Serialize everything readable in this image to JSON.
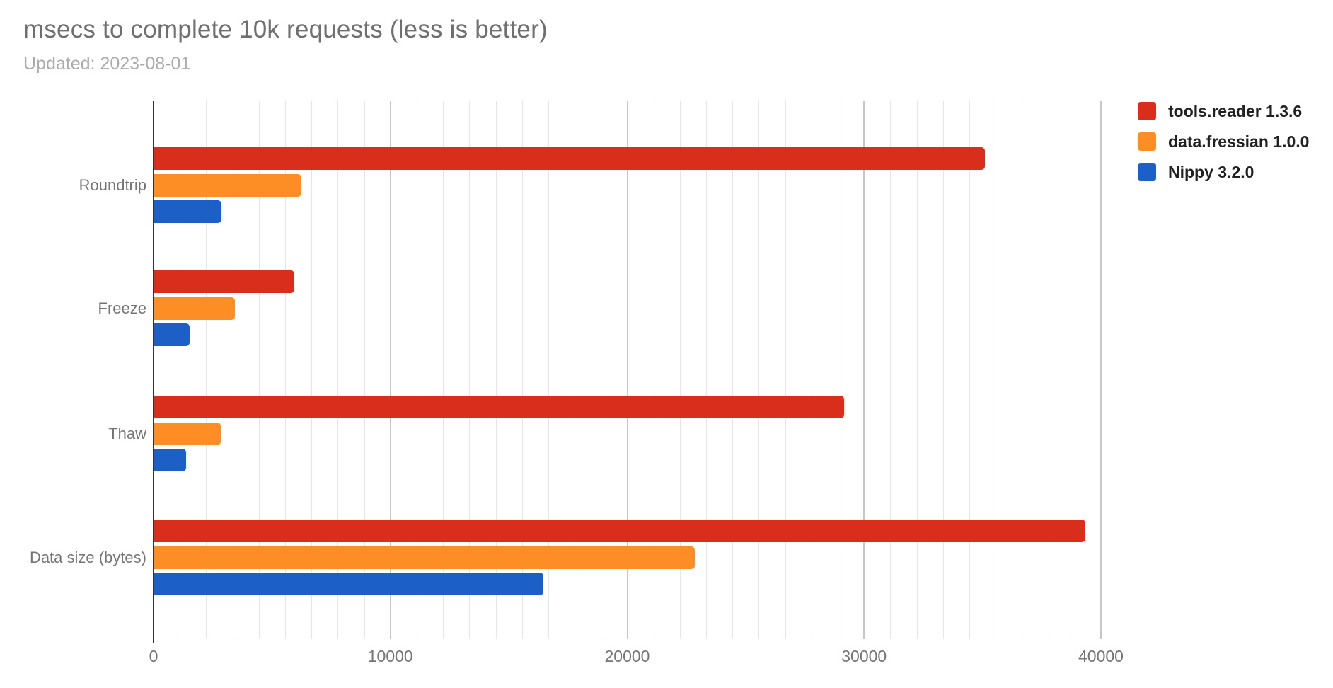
{
  "chart_data": {
    "type": "bar",
    "orientation": "horizontal",
    "title": "msecs to complete 10k requests (less is better)",
    "subtitle": "Updated: 2023-08-01",
    "categories": [
      "Roundtrip",
      "Freeze",
      "Thaw",
      "Data size (bytes)"
    ],
    "series": [
      {
        "name": "tools.reader 1.3.6",
        "color": "#d82e1b",
        "values": [
          35100,
          5950,
          29150,
          39350
        ]
      },
      {
        "name": "data.fressian 1.0.0",
        "color": "#fd8e26",
        "values": [
          6250,
          3440,
          2840,
          22850
        ]
      },
      {
        "name": "Nippy 3.2.0",
        "color": "#1b5fc7",
        "values": [
          2870,
          1520,
          1370,
          16450
        ]
      }
    ],
    "x_axis": {
      "min": 0,
      "max": 40000,
      "tick_interval": 10000,
      "minor_intervals_per_major": 9,
      "tick_labels": [
        "0",
        "10000",
        "20000",
        "30000",
        "40000"
      ]
    },
    "legend_position": "right",
    "grid": true
  },
  "colors": {
    "background": "#ffffff",
    "title_text": "#6f6f6f",
    "subtitle_text": "#ababab",
    "axis_text": "#757575",
    "legend_text": "#212121",
    "grid_minor": "#e6e6e6",
    "grid_major": "#c6c6c6",
    "axis_line": "#333333"
  }
}
